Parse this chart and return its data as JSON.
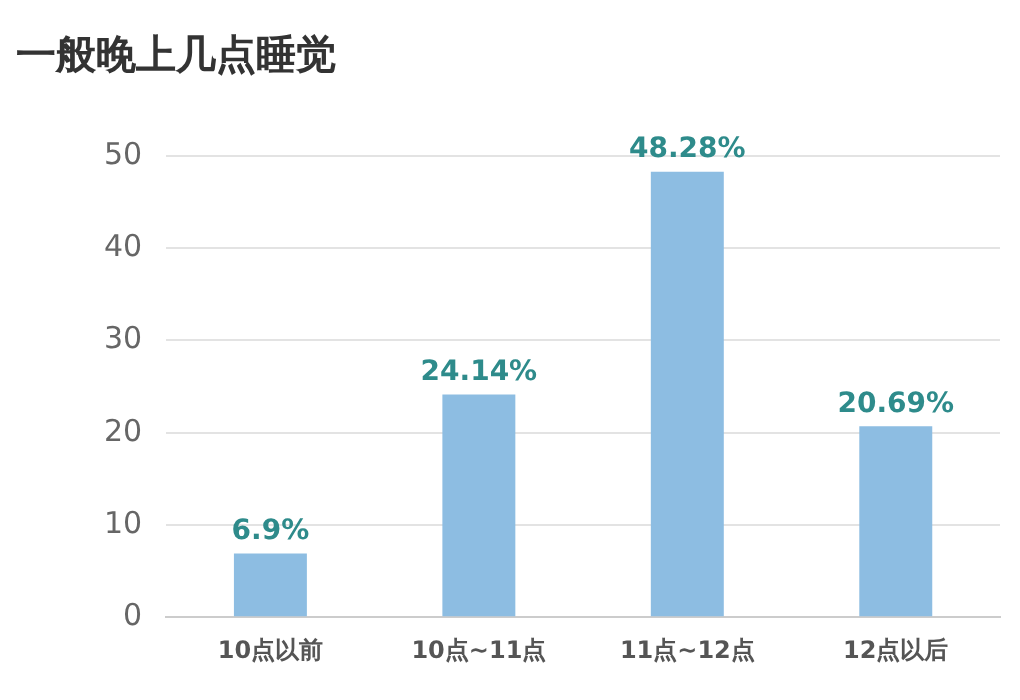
{
  "chart_data": {
    "type": "bar",
    "title": "一般晚上几点睡觉",
    "categories": [
      "10点以前",
      "10点~11点",
      "11点~12点",
      "12点以后"
    ],
    "values": [
      6.9,
      24.14,
      48.28,
      20.69
    ],
    "value_labels": [
      "6.9%",
      "24.14%",
      "48.28%",
      "20.69%"
    ],
    "color": "#8dbde2",
    "ylim": [
      0,
      50
    ],
    "yticks": [
      0,
      10,
      20,
      30,
      40,
      50
    ],
    "grid": "y",
    "legend": false
  }
}
